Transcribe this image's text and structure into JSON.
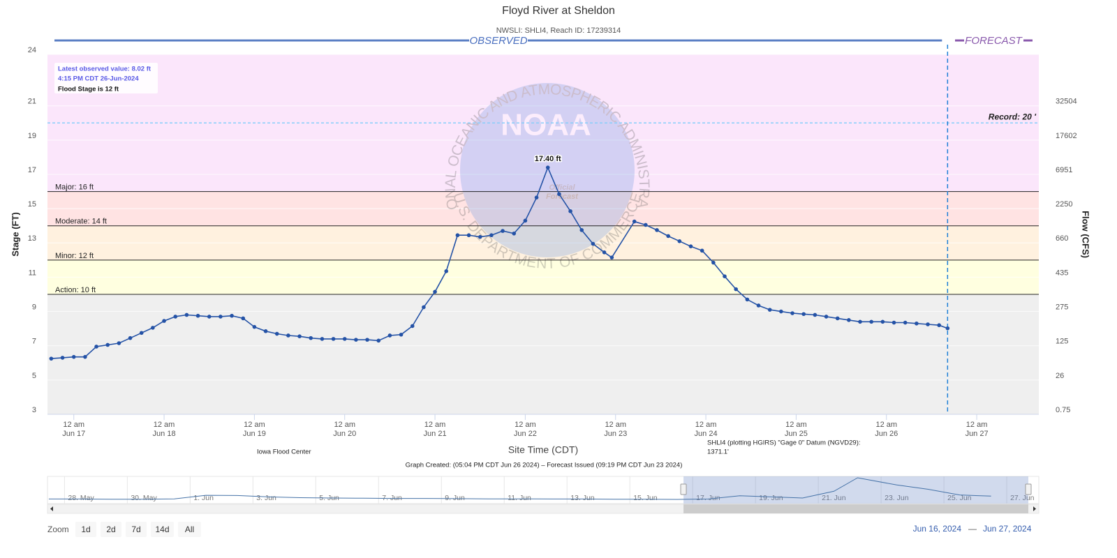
{
  "chart_data": {
    "type": "line",
    "title": "Floyd River at Sheldon",
    "subtitle": "NWSLI: SHLI4, Reach ID: 17239314",
    "y_label": "Stage (FT)",
    "y2_label": "Flow (CFS)",
    "x_label": "Site Time (CDT)",
    "forecast_label": "FORECAST",
    "xlim": [
      "2024-06-16T17:00",
      "2024-06-27T16:30"
    ],
    "xticks": [
      {
        "value": "2024-06-17T00:00",
        "label": "12 am",
        "date": "Jun 17"
      },
      {
        "value": "2024-06-18T00:00",
        "label": "12 am",
        "date": "Jun 18"
      },
      {
        "value": "2024-06-19T00:00",
        "label": "12 am",
        "date": "Jun 19"
      },
      {
        "value": "2024-06-20T00:00",
        "label": "12 am",
        "date": "Jun 20"
      },
      {
        "value": "2024-06-21T00:00",
        "label": "12 am",
        "date": "Jun 21"
      },
      {
        "value": "2024-06-22T00:00",
        "label": "12 am",
        "date": "Jun 22"
      },
      {
        "value": "2024-06-23T00:00",
        "label": "12 am",
        "date": "Jun 23"
      },
      {
        "value": "2024-06-24T00:00",
        "label": "12 am",
        "date": "Jun 24"
      },
      {
        "value": "2024-06-25T00:00",
        "label": "12 am",
        "date": "Jun 25"
      },
      {
        "value": "2024-06-26T00:00",
        "label": "12 am",
        "date": "Jun 26"
      },
      {
        "value": "2024-06-27T00:00",
        "label": "12 am",
        "date": "Jun 27"
      }
    ],
    "ylim": [
      3,
      24
    ],
    "yticks": [
      3,
      5,
      7,
      9,
      11,
      13,
      15,
      17,
      19,
      21,
      24
    ],
    "y2ticks": [
      0.75,
      26,
      125,
      275,
      435,
      660,
      2250,
      6951,
      17602,
      32504
    ],
    "grid": true,
    "series": [
      {
        "name": "OBSERVED",
        "color": "#2452a6",
        "x": [
          "2024-06-16T18:00",
          "2024-06-16T21:00",
          "2024-06-17T00:00",
          "2024-06-17T03:00",
          "2024-06-17T06:00",
          "2024-06-17T09:00",
          "2024-06-17T12:00",
          "2024-06-17T15:00",
          "2024-06-17T18:00",
          "2024-06-17T21:00",
          "2024-06-18T00:00",
          "2024-06-18T03:00",
          "2024-06-18T06:00",
          "2024-06-18T09:00",
          "2024-06-18T12:00",
          "2024-06-18T15:00",
          "2024-06-18T18:00",
          "2024-06-18T21:00",
          "2024-06-19T00:00",
          "2024-06-19T03:00",
          "2024-06-19T06:00",
          "2024-06-19T09:00",
          "2024-06-19T12:00",
          "2024-06-19T15:00",
          "2024-06-19T18:00",
          "2024-06-19T21:00",
          "2024-06-20T00:00",
          "2024-06-20T03:00",
          "2024-06-20T06:00",
          "2024-06-20T09:00",
          "2024-06-20T12:00",
          "2024-06-20T15:00",
          "2024-06-20T18:00",
          "2024-06-20T21:00",
          "2024-06-21T00:00",
          "2024-06-21T03:00",
          "2024-06-21T06:00",
          "2024-06-21T09:00",
          "2024-06-21T12:00",
          "2024-06-21T15:00",
          "2024-06-21T18:00",
          "2024-06-21T21:00",
          "2024-06-22T00:00",
          "2024-06-22T03:00",
          "2024-06-22T06:00",
          "2024-06-22T09:00",
          "2024-06-22T12:00",
          "2024-06-22T15:00",
          "2024-06-22T18:00",
          "2024-06-22T21:00",
          "2024-06-22T23:00",
          "2024-06-23T05:00",
          "2024-06-23T08:00",
          "2024-06-23T11:00",
          "2024-06-23T14:00",
          "2024-06-23T17:00",
          "2024-06-23T20:00",
          "2024-06-23T23:00",
          "2024-06-24T02:00",
          "2024-06-24T05:00",
          "2024-06-24T08:00",
          "2024-06-24T11:00",
          "2024-06-24T14:00",
          "2024-06-24T17:00",
          "2024-06-24T20:00",
          "2024-06-24T23:00",
          "2024-06-25T02:00",
          "2024-06-25T05:00",
          "2024-06-25T08:00",
          "2024-06-25T11:00",
          "2024-06-25T14:00",
          "2024-06-25T17:00",
          "2024-06-25T20:00",
          "2024-06-25T23:00",
          "2024-06-26T02:00",
          "2024-06-26T05:00",
          "2024-06-26T08:00",
          "2024-06-26T11:00",
          "2024-06-26T14:00",
          "2024-06-26T16:15"
        ],
        "values": [
          6.25,
          6.3,
          6.35,
          6.35,
          6.95,
          7.05,
          7.15,
          7.45,
          7.75,
          8.05,
          8.45,
          8.7,
          8.8,
          8.75,
          8.7,
          8.7,
          8.75,
          8.6,
          8.1,
          7.85,
          7.7,
          7.6,
          7.55,
          7.45,
          7.4,
          7.4,
          7.4,
          7.35,
          7.35,
          7.3,
          7.6,
          7.65,
          8.15,
          9.25,
          10.15,
          11.35,
          13.45,
          13.45,
          13.35,
          13.45,
          13.7,
          13.55,
          14.3,
          15.65,
          17.4,
          15.85,
          14.85,
          13.75,
          12.95,
          12.45,
          12.15,
          14.25,
          14.05,
          13.75,
          13.4,
          13.1,
          12.8,
          12.55,
          11.85,
          11.05,
          10.3,
          9.7,
          9.35,
          9.1,
          9.0,
          8.9,
          8.85,
          8.8,
          8.7,
          8.6,
          8.5,
          8.4,
          8.4,
          8.4,
          8.35,
          8.35,
          8.3,
          8.25,
          8.2,
          8.02
        ]
      }
    ],
    "base_color": "#efefef",
    "flood_categories": [
      {
        "label": "Action: 10 ft",
        "value": 10,
        "color": "#ffffe0"
      },
      {
        "label": "Minor: 12 ft",
        "value": 12,
        "color": "#fff1df"
      },
      {
        "label": "Moderate: 14 ft",
        "value": 14,
        "color": "#ffe3e3"
      },
      {
        "label": "Major: 16 ft",
        "value": 16,
        "color": "#fbe6fb"
      }
    ],
    "record": {
      "label": "Record: 20 '",
      "value": 20,
      "color": "#87cefa"
    },
    "annotations": [
      {
        "text": "17.40 ft",
        "x": "2024-06-22T06:00",
        "y": 17.4
      }
    ],
    "info": {
      "latest": "Latest observed value: 8.02 ft",
      "time": "4:15 PM CDT 26-Jun-2024",
      "flood": "Flood Stage is 12 ft"
    },
    "credits": {
      "source": "Iowa Flood Center",
      "datum": [
        "SHLI4 (plotting HGIRS) \"Gage 0\" Datum (NGVD29):",
        "1371.1'"
      ],
      "created": "Graph Created: (05:04 PM CDT Jun 26 2024) – Forecast Issued (09:19 PM CDT Jun 23 2024)"
    },
    "watermark": {
      "logo": "NOAA",
      "ring_top": "NATIONAL OCEANIC AND ATMOSPHERIC ADMINISTRATION",
      "ring_bottom": "U.S. DEPARTMENT OF COMMERCE",
      "stamp": [
        "Official",
        "Forecast"
      ]
    },
    "navigator": {
      "xlim": [
        "2024-05-27T11:00",
        "2024-06-28T00:30"
      ],
      "xticks": [
        {
          "value": "2024-05-28T00:00",
          "label": "28. May"
        },
        {
          "value": "2024-05-30T00:00",
          "label": "30. May"
        },
        {
          "value": "2024-06-01T00:00",
          "label": "1. Jun"
        },
        {
          "value": "2024-06-03T00:00",
          "label": "3. Jun"
        },
        {
          "value": "2024-06-05T00:00",
          "label": "5. Jun"
        },
        {
          "value": "2024-06-07T00:00",
          "label": "7. Jun"
        },
        {
          "value": "2024-06-09T00:00",
          "label": "9. Jun"
        },
        {
          "value": "2024-06-11T00:00",
          "label": "11. Jun"
        },
        {
          "value": "2024-06-13T00:00",
          "label": "13. Jun"
        },
        {
          "value": "2024-06-15T00:00",
          "label": "15. Jun"
        },
        {
          "value": "2024-06-17T00:00",
          "label": "17. Jun"
        },
        {
          "value": "2024-06-19T00:00",
          "label": "19. Jun"
        },
        {
          "value": "2024-06-21T00:00",
          "label": "21. Jun"
        },
        {
          "value": "2024-06-23T00:00",
          "label": "23. Jun"
        },
        {
          "value": "2024-06-25T00:00",
          "label": "25. Jun"
        },
        {
          "value": "2024-06-27T00:00",
          "label": "27. Jun"
        }
      ],
      "x": [
        "2024-05-27T12:00",
        "2024-05-28T12:00",
        "2024-05-29T12:00",
        "2024-05-30T12:00",
        "2024-05-31T12:00",
        "2024-06-01T12:00",
        "2024-06-02T12:00",
        "2024-06-03T12:00",
        "2024-06-04T12:00",
        "2024-06-05T12:00",
        "2024-06-06T12:00",
        "2024-06-07T12:00",
        "2024-06-08T12:00",
        "2024-06-09T12:00",
        "2024-06-10T12:00",
        "2024-06-11T12:00",
        "2024-06-12T12:00",
        "2024-06-13T12:00",
        "2024-06-14T12:00",
        "2024-06-15T12:00",
        "2024-06-16T12:00",
        "2024-06-17T12:00",
        "2024-06-18T12:00",
        "2024-06-19T12:00",
        "2024-06-20T12:00",
        "2024-06-21T12:00",
        "2024-06-22T06:00",
        "2024-06-23T12:00",
        "2024-06-24T12:00",
        "2024-06-25T12:00",
        "2024-06-26T12:00"
      ],
      "values": [
        6.5,
        6.5,
        6.4,
        6.4,
        6.6,
        8.4,
        8.3,
        7.6,
        7.2,
        7.0,
        6.9,
        6.8,
        6.8,
        6.7,
        6.6,
        6.6,
        6.5,
        6.5,
        6.4,
        6.4,
        6.3,
        6.5,
        8.2,
        7.6,
        7.0,
        10.5,
        17.4,
        13.7,
        11.5,
        8.6,
        8.0
      ]
    },
    "zoom": {
      "label": "Zoom",
      "buttons": [
        "1d",
        "2d",
        "7d",
        "14d",
        "All"
      ]
    },
    "range": {
      "from": "Jun 16, 2024",
      "sep": "—",
      "to": "Jun 27, 2024"
    }
  }
}
